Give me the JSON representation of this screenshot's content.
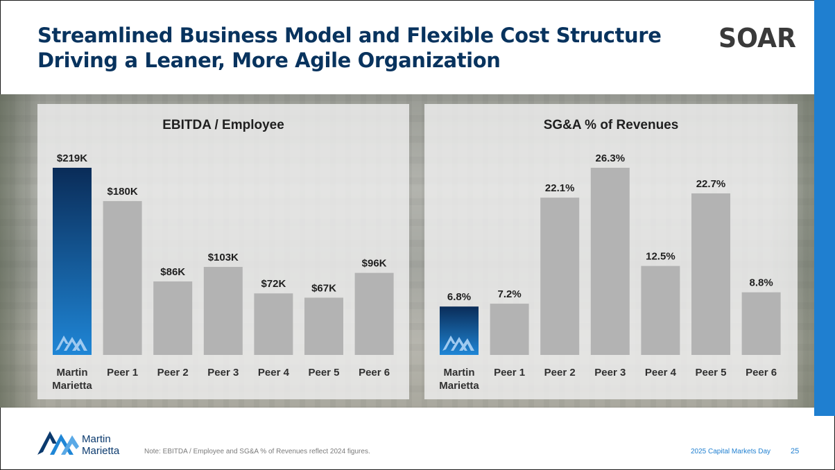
{
  "slide": {
    "title_line1": "Streamlined Business Model and Flexible Cost Structure",
    "title_line2": "Driving a Leaner, More Agile Organization",
    "logo_text": "SOAR",
    "footer_note": "Note: EBITDA / Employee and SG&A % of Revenues reflect 2024 figures.",
    "footer_event": "2025 Capital Markets Day",
    "page_number": "25",
    "company_logo_line1": "Martin",
    "company_logo_line2": "Marietta"
  },
  "colors": {
    "title": "#08335e",
    "bar_gray": "#b3b3b3",
    "bar_highlight_top": "#0a2c58",
    "bar_highlight_bottom": "#1f86d6",
    "accent": "#1f7fd0",
    "label": "#1f1f1f"
  },
  "chart_data": [
    {
      "type": "bar",
      "title": "EBITDA / Employee",
      "categories": [
        "Martin Marietta",
        "Peer 1",
        "Peer 2",
        "Peer 3",
        "Peer 4",
        "Peer 5",
        "Peer 6"
      ],
      "values": [
        219,
        180,
        86,
        103,
        72,
        67,
        96
      ],
      "value_labels": [
        "$219K",
        "$180K",
        "$86K",
        "$103K",
        "$72K",
        "$67K",
        "$96K"
      ],
      "highlight_index": 0,
      "ylim": [
        0,
        219
      ]
    },
    {
      "type": "bar",
      "title": "SG&A % of Revenues",
      "categories": [
        "Martin Marietta",
        "Peer 1",
        "Peer 2",
        "Peer 3",
        "Peer 4",
        "Peer 5",
        "Peer 6"
      ],
      "values": [
        6.8,
        7.2,
        22.1,
        26.3,
        12.5,
        22.7,
        8.8
      ],
      "value_labels": [
        "6.8%",
        "7.2%",
        "22.1%",
        "26.3%",
        "12.5%",
        "22.7%",
        "8.8%"
      ],
      "highlight_index": 0,
      "ylim": [
        0,
        26.3
      ]
    }
  ]
}
